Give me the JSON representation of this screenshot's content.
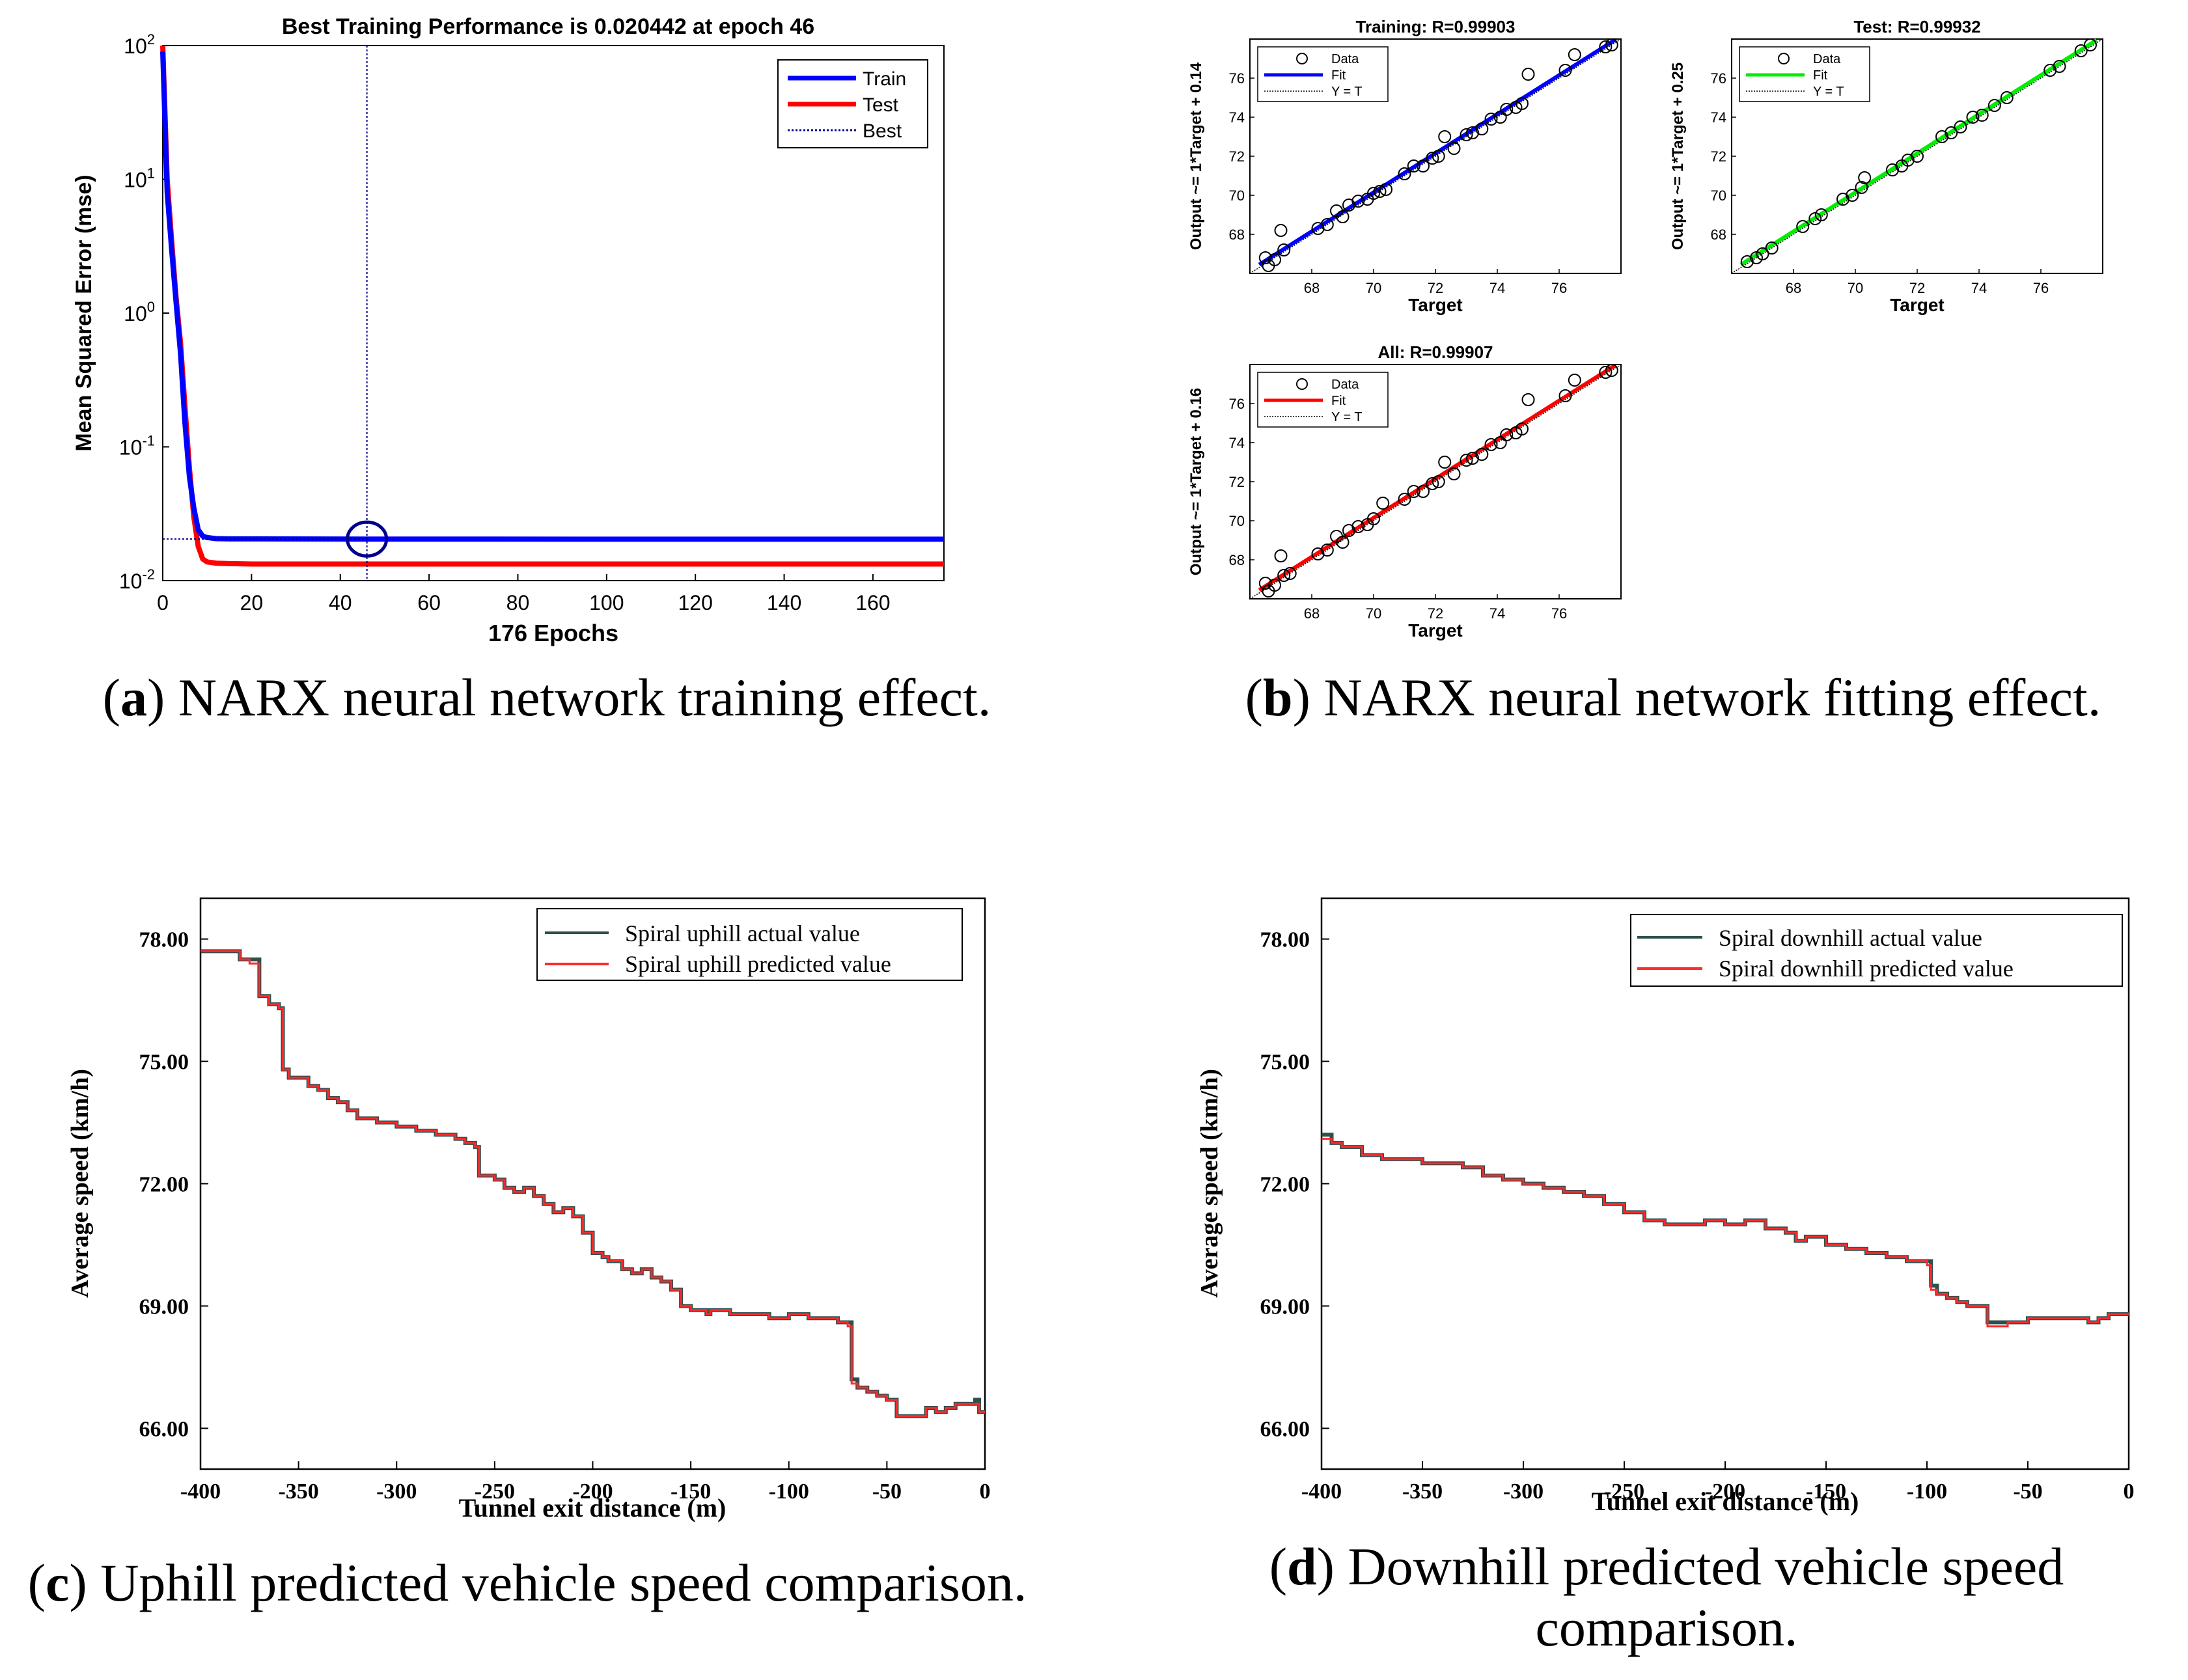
{
  "captions": {
    "a": {
      "letter": "a",
      "text": "NARX neural network training effect."
    },
    "b": {
      "letter": "b",
      "text": "NARX neural network fitting effect."
    },
    "c": {
      "letter": "c",
      "text": "Uphill predicted vehicle speed comparison."
    },
    "d": {
      "letter": "d",
      "text": "Downhill predicted vehicle speed comparison."
    }
  },
  "colors": {
    "train": "#0000ff",
    "test": "#ff0000",
    "best": "#00008b",
    "fit_all": "#ff0000",
    "fit_test": "#00ee00",
    "fit_train": "#0000ff",
    "actual": "#2f4f4f",
    "predicted": "#ff2a2a"
  },
  "chart_data": [
    {
      "id": "a",
      "type": "line",
      "title": "Best Training Performance is 0.020442 at epoch 46",
      "xlabel": "176 Epochs",
      "ylabel": "Mean Squared Error  (mse)",
      "yscale": "log",
      "xlim": [
        0,
        176
      ],
      "ylim": [
        0.01,
        100
      ],
      "xticks": [
        "0",
        "20",
        "40",
        "60",
        "80",
        "100",
        "120",
        "140",
        "160"
      ],
      "yticks": [
        "10",
        "10",
        "10",
        "10",
        "10"
      ],
      "ytick_exponents": [
        "2",
        "1",
        "0",
        "-1",
        "-2"
      ],
      "legend": [
        "Train",
        "Test",
        "Best"
      ],
      "best": {
        "epoch": 46,
        "value": 0.020442
      },
      "series": [
        {
          "name": "Train",
          "x": [
            0,
            1,
            2,
            3,
            4,
            5,
            6,
            7,
            8,
            9,
            10,
            12,
            15,
            20,
            46,
            100,
            176
          ],
          "values": [
            90,
            8,
            3,
            1.2,
            0.5,
            0.15,
            0.06,
            0.035,
            0.024,
            0.0215,
            0.021,
            0.0206,
            0.0205,
            0.0205,
            0.020442,
            0.0204,
            0.0204
          ]
        },
        {
          "name": "Test",
          "x": [
            0,
            1,
            2,
            3,
            4,
            5,
            6,
            7,
            8,
            9,
            10,
            12,
            15,
            20,
            46,
            100,
            176
          ],
          "values": [
            100,
            10,
            3.5,
            1.3,
            0.6,
            0.2,
            0.07,
            0.03,
            0.018,
            0.0145,
            0.0138,
            0.0135,
            0.0134,
            0.0133,
            0.0133,
            0.0133,
            0.0133
          ]
        }
      ]
    },
    {
      "id": "b1",
      "type": "scatter",
      "title": "Training: R=0.99903",
      "xlabel": "Target",
      "ylabel": "Output ~= 1*Target + 0.14",
      "xlim": [
        66,
        78
      ],
      "ylim": [
        66,
        78
      ],
      "xticks": [
        "68",
        "70",
        "72",
        "74",
        "76"
      ],
      "yticks": [
        "68",
        "70",
        "72",
        "74",
        "76"
      ],
      "legend": [
        "Data",
        "Fit",
        "Y = T"
      ],
      "fit_color": "blue",
      "points": [
        [
          66.5,
          66.8
        ],
        [
          66.6,
          66.4
        ],
        [
          66.8,
          66.7
        ],
        [
          67.0,
          68.2
        ],
        [
          67.1,
          67.2
        ],
        [
          68.2,
          68.3
        ],
        [
          68.5,
          68.5
        ],
        [
          68.8,
          69.2
        ],
        [
          69.0,
          68.9
        ],
        [
          69.2,
          69.5
        ],
        [
          69.5,
          69.7
        ],
        [
          69.8,
          69.8
        ],
        [
          70.0,
          70.1
        ],
        [
          70.2,
          70.2
        ],
        [
          70.4,
          70.3
        ],
        [
          71.0,
          71.1
        ],
        [
          71.3,
          71.5
        ],
        [
          71.6,
          71.5
        ],
        [
          71.9,
          71.9
        ],
        [
          72.1,
          72.0
        ],
        [
          72.3,
          73.0
        ],
        [
          72.6,
          72.4
        ],
        [
          73.0,
          73.1
        ],
        [
          73.2,
          73.2
        ],
        [
          73.5,
          73.4
        ],
        [
          73.8,
          73.9
        ],
        [
          74.1,
          74.0
        ],
        [
          74.3,
          74.4
        ],
        [
          74.6,
          74.5
        ],
        [
          74.8,
          74.7
        ],
        [
          75.0,
          76.2
        ],
        [
          76.2,
          76.4
        ],
        [
          76.5,
          77.2
        ],
        [
          77.5,
          77.6
        ],
        [
          77.7,
          77.7
        ]
      ]
    },
    {
      "id": "b2",
      "type": "scatter",
      "title": "Test: R=0.99932",
      "xlabel": "Target",
      "ylabel": "Output ~= 1*Target + 0.25",
      "xlim": [
        66,
        78
      ],
      "ylim": [
        66,
        78
      ],
      "xticks": [
        "68",
        "70",
        "72",
        "74",
        "76"
      ],
      "yticks": [
        "68",
        "70",
        "72",
        "74",
        "76"
      ],
      "legend": [
        "Data",
        "Fit",
        "Y = T"
      ],
      "fit_color": "green",
      "points": [
        [
          66.5,
          66.6
        ],
        [
          66.8,
          66.8
        ],
        [
          67.0,
          67.0
        ],
        [
          67.3,
          67.3
        ],
        [
          68.3,
          68.4
        ],
        [
          68.7,
          68.8
        ],
        [
          68.9,
          69.0
        ],
        [
          69.6,
          69.8
        ],
        [
          69.9,
          70.0
        ],
        [
          70.2,
          70.4
        ],
        [
          70.3,
          70.9
        ],
        [
          71.2,
          71.3
        ],
        [
          71.5,
          71.5
        ],
        [
          71.7,
          71.8
        ],
        [
          72.0,
          72.0
        ],
        [
          72.8,
          73.0
        ],
        [
          73.1,
          73.2
        ],
        [
          73.4,
          73.5
        ],
        [
          73.8,
          74.0
        ],
        [
          74.1,
          74.1
        ],
        [
          74.5,
          74.6
        ],
        [
          74.9,
          75.0
        ],
        [
          76.3,
          76.4
        ],
        [
          76.6,
          76.6
        ],
        [
          77.3,
          77.4
        ],
        [
          77.6,
          77.7
        ]
      ]
    },
    {
      "id": "b3",
      "type": "scatter",
      "title": "All: R=0.99907",
      "xlabel": "Target",
      "ylabel": "Output ~= 1*Target + 0.16",
      "xlim": [
        66,
        78
      ],
      "ylim": [
        66,
        78
      ],
      "xticks": [
        "68",
        "70",
        "72",
        "74",
        "76"
      ],
      "yticks": [
        "68",
        "70",
        "72",
        "74",
        "76"
      ],
      "legend": [
        "Data",
        "Fit",
        "Y = T"
      ],
      "fit_color": "red",
      "points": [
        [
          66.5,
          66.8
        ],
        [
          66.6,
          66.4
        ],
        [
          66.8,
          66.7
        ],
        [
          67.0,
          68.2
        ],
        [
          67.1,
          67.2
        ],
        [
          67.3,
          67.3
        ],
        [
          68.2,
          68.3
        ],
        [
          68.5,
          68.5
        ],
        [
          68.8,
          69.2
        ],
        [
          69.0,
          68.9
        ],
        [
          69.2,
          69.5
        ],
        [
          69.5,
          69.7
        ],
        [
          69.8,
          69.8
        ],
        [
          70.0,
          70.1
        ],
        [
          70.3,
          70.9
        ],
        [
          71.0,
          71.1
        ],
        [
          71.3,
          71.5
        ],
        [
          71.6,
          71.5
        ],
        [
          71.9,
          71.9
        ],
        [
          72.1,
          72.0
        ],
        [
          72.3,
          73.0
        ],
        [
          72.6,
          72.4
        ],
        [
          73.0,
          73.1
        ],
        [
          73.2,
          73.2
        ],
        [
          73.5,
          73.4
        ],
        [
          73.8,
          73.9
        ],
        [
          74.1,
          74.0
        ],
        [
          74.3,
          74.4
        ],
        [
          74.6,
          74.5
        ],
        [
          74.8,
          74.7
        ],
        [
          75.0,
          76.2
        ],
        [
          76.2,
          76.4
        ],
        [
          76.5,
          77.2
        ],
        [
          77.5,
          77.6
        ],
        [
          77.7,
          77.7
        ]
      ]
    },
    {
      "id": "c",
      "type": "line",
      "xlabel": "Tunnel exit distance (m)",
      "ylabel": "Average speed  (km/h)",
      "xlim": [
        -400,
        0
      ],
      "ylim": [
        65,
        79
      ],
      "xticks": [
        "-400",
        "-350",
        "-300",
        "-250",
        "-200",
        "-150",
        "-100",
        "-50",
        "0"
      ],
      "yticks": [
        "78.00",
        "75.00",
        "72.00",
        "69.00",
        "66.00"
      ],
      "legend": [
        "Spiral uphill actual value",
        "Spiral uphill predicted value"
      ],
      "series": [
        {
          "name": "Spiral uphill actual value",
          "x": [
            -400,
            -385,
            -380,
            -375,
            -370,
            -365,
            -360,
            -358,
            -355,
            -345,
            -340,
            -335,
            -330,
            -325,
            -320,
            -310,
            -300,
            -290,
            -280,
            -270,
            -265,
            -260,
            -258,
            -250,
            -245,
            -240,
            -235,
            -230,
            -225,
            -220,
            -215,
            -210,
            -205,
            -200,
            -195,
            -192,
            -185,
            -180,
            -175,
            -170,
            -165,
            -160,
            -155,
            -150,
            -145,
            -142,
            -140,
            -130,
            -120,
            -110,
            -100,
            -90,
            -80,
            -75,
            -70,
            -68,
            -65,
            -60,
            -55,
            -50,
            -45,
            -40,
            -35,
            -30,
            -25,
            -20,
            -15,
            -10,
            -5,
            -3,
            0
          ],
          "values": [
            77.7,
            77.7,
            77.5,
            77.5,
            76.6,
            76.4,
            76.3,
            74.8,
            74.6,
            74.4,
            74.3,
            74.1,
            74.0,
            73.8,
            73.6,
            73.5,
            73.4,
            73.3,
            73.2,
            73.1,
            73.0,
            72.9,
            72.2,
            72.1,
            71.9,
            71.8,
            71.9,
            71.7,
            71.5,
            71.3,
            71.4,
            71.2,
            70.8,
            70.3,
            70.2,
            70.1,
            69.9,
            69.8,
            69.9,
            69.7,
            69.6,
            69.4,
            69.0,
            68.9,
            68.9,
            68.8,
            68.9,
            68.8,
            68.8,
            68.7,
            68.8,
            68.7,
            68.7,
            68.6,
            68.6,
            67.2,
            67.0,
            66.9,
            66.8,
            66.7,
            66.3,
            66.3,
            66.3,
            66.5,
            66.4,
            66.5,
            66.6,
            66.6,
            66.7,
            66.4,
            66.4
          ]
        },
        {
          "name": "Spiral uphill predicted value",
          "x": [
            -400,
            -385,
            -380,
            -375,
            -370,
            -365,
            -360,
            -358,
            -355,
            -345,
            -340,
            -335,
            -330,
            -325,
            -320,
            -310,
            -300,
            -290,
            -280,
            -270,
            -265,
            -260,
            -258,
            -250,
            -245,
            -240,
            -235,
            -230,
            -225,
            -220,
            -215,
            -210,
            -205,
            -200,
            -195,
            -192,
            -185,
            -180,
            -175,
            -170,
            -165,
            -160,
            -155,
            -150,
            -145,
            -142,
            -140,
            -130,
            -120,
            -110,
            -100,
            -90,
            -80,
            -75,
            -70,
            -68,
            -65,
            -60,
            -55,
            -50,
            -45,
            -40,
            -35,
            -30,
            -25,
            -20,
            -15,
            -10,
            -5,
            -3,
            0
          ],
          "values": [
            77.7,
            77.7,
            77.5,
            77.4,
            76.6,
            76.4,
            76.3,
            74.8,
            74.6,
            74.4,
            74.3,
            74.1,
            74.0,
            73.8,
            73.6,
            73.5,
            73.4,
            73.3,
            73.2,
            73.1,
            73.0,
            72.9,
            72.2,
            72.1,
            71.9,
            71.8,
            71.9,
            71.7,
            71.5,
            71.3,
            71.4,
            71.2,
            70.8,
            70.3,
            70.2,
            70.1,
            69.9,
            69.8,
            69.9,
            69.7,
            69.6,
            69.4,
            69.0,
            68.9,
            68.9,
            68.8,
            68.9,
            68.8,
            68.8,
            68.7,
            68.8,
            68.7,
            68.7,
            68.6,
            68.5,
            67.1,
            67.0,
            66.9,
            66.8,
            66.7,
            66.3,
            66.3,
            66.3,
            66.5,
            66.4,
            66.5,
            66.6,
            66.6,
            66.6,
            66.4,
            66.4
          ]
        }
      ]
    },
    {
      "id": "d",
      "type": "line",
      "xlabel": "Tunnel exit distance (m)",
      "ylabel": "Average speed  (km/h)",
      "xlim": [
        -400,
        0
      ],
      "ylim": [
        65,
        79
      ],
      "xticks": [
        "-400",
        "-350",
        "-300",
        "-250",
        "-200",
        "-150",
        "-100",
        "-50",
        "0"
      ],
      "yticks": [
        "78.00",
        "75.00",
        "72.00",
        "69.00",
        "66.00"
      ],
      "legend": [
        "Spiral downhill actual value",
        "Spiral downhill predicted value"
      ],
      "series": [
        {
          "name": "Spiral downhill actual value",
          "x": [
            -400,
            -395,
            -390,
            -380,
            -370,
            -360,
            -350,
            -340,
            -330,
            -320,
            -310,
            -300,
            -290,
            -280,
            -270,
            -260,
            -250,
            -240,
            -230,
            -220,
            -210,
            -200,
            -190,
            -180,
            -170,
            -165,
            -160,
            -150,
            -140,
            -130,
            -120,
            -110,
            -100,
            -98,
            -95,
            -90,
            -85,
            -80,
            -70,
            -60,
            -50,
            -40,
            -30,
            -20,
            -15,
            -10,
            -5,
            0
          ],
          "values": [
            73.2,
            73.0,
            72.9,
            72.7,
            72.6,
            72.6,
            72.5,
            72.5,
            72.4,
            72.2,
            72.1,
            72.0,
            71.9,
            71.8,
            71.7,
            71.5,
            71.3,
            71.1,
            71.0,
            71.0,
            71.1,
            71.0,
            71.1,
            70.9,
            70.8,
            70.6,
            70.7,
            70.5,
            70.4,
            70.3,
            70.2,
            70.1,
            70.1,
            69.5,
            69.3,
            69.2,
            69.1,
            69.0,
            68.6,
            68.6,
            68.7,
            68.7,
            68.7,
            68.6,
            68.7,
            68.8,
            68.8,
            68.8
          ]
        },
        {
          "name": "Spiral downhill predicted value",
          "x": [
            -400,
            -395,
            -390,
            -380,
            -370,
            -360,
            -350,
            -340,
            -330,
            -320,
            -310,
            -300,
            -290,
            -280,
            -270,
            -260,
            -250,
            -240,
            -230,
            -220,
            -210,
            -200,
            -190,
            -180,
            -170,
            -165,
            -160,
            -150,
            -140,
            -130,
            -120,
            -110,
            -100,
            -98,
            -95,
            -90,
            -85,
            -80,
            -70,
            -60,
            -50,
            -40,
            -30,
            -20,
            -15,
            -10,
            -5,
            0
          ],
          "values": [
            73.1,
            73.0,
            72.9,
            72.7,
            72.6,
            72.6,
            72.5,
            72.5,
            72.4,
            72.2,
            72.1,
            72.0,
            71.9,
            71.8,
            71.7,
            71.5,
            71.3,
            71.1,
            71.0,
            71.0,
            71.1,
            71.0,
            71.1,
            70.9,
            70.8,
            70.6,
            70.7,
            70.5,
            70.4,
            70.3,
            70.2,
            70.1,
            70.0,
            69.4,
            69.3,
            69.2,
            69.1,
            69.0,
            68.5,
            68.6,
            68.7,
            68.7,
            68.7,
            68.6,
            68.7,
            68.8,
            68.8,
            68.8
          ]
        }
      ]
    }
  ]
}
